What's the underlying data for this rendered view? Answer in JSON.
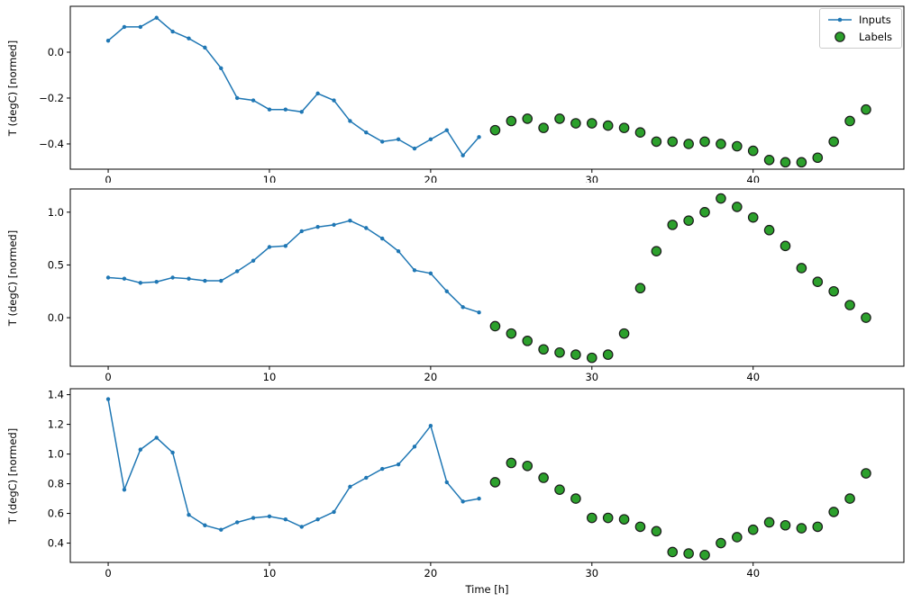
{
  "figure": {
    "background": "#ffffff",
    "accent_blue": "#1f77b4",
    "accent_green": "#2ca02c",
    "marker_edge": "#1a1a1a"
  },
  "legend": {
    "items": [
      {
        "label": "Inputs",
        "marker": "line-dot",
        "color": "#1f77b4"
      },
      {
        "label": "Labels",
        "marker": "circle",
        "color": "#2ca02c"
      }
    ]
  },
  "chart_data": [
    {
      "type": "line",
      "title": "",
      "xlabel": "",
      "ylabel": "T (degC) [normed]",
      "xlim": [
        -2.35,
        49.35
      ],
      "ylim": [
        -0.51,
        0.2
      ],
      "xticks": [
        0,
        10,
        20,
        30,
        40
      ],
      "xticklabels": [
        "0",
        "10",
        "20",
        "30",
        "40"
      ],
      "yticks": [
        0.0,
        -0.2,
        -0.4
      ],
      "yticklabels": [
        "0.0",
        "−0.2",
        "−0.4"
      ],
      "grid": false,
      "legend_position": "upper right",
      "series": [
        {
          "name": "Inputs",
          "style": "line",
          "color": "#1f77b4",
          "x": [
            0,
            1,
            2,
            3,
            4,
            5,
            6,
            7,
            8,
            9,
            10,
            11,
            12,
            13,
            14,
            15,
            16,
            17,
            18,
            19,
            20,
            21,
            22,
            23
          ],
          "y": [
            0.05,
            0.11,
            0.11,
            0.15,
            0.09,
            0.06,
            0.02,
            -0.07,
            -0.2,
            -0.21,
            -0.25,
            -0.25,
            -0.26,
            -0.18,
            -0.21,
            -0.3,
            -0.35,
            -0.39,
            -0.38,
            -0.42,
            -0.38,
            -0.34,
            -0.45,
            -0.37
          ]
        },
        {
          "name": "Labels",
          "style": "scatter",
          "color": "#2ca02c",
          "edgecolor": "#1a1a1a",
          "x": [
            24,
            25,
            26,
            27,
            28,
            29,
            30,
            31,
            32,
            33,
            34,
            35,
            36,
            37,
            38,
            39,
            40,
            41,
            42,
            43,
            44,
            45,
            46,
            47
          ],
          "y": [
            -0.34,
            -0.3,
            -0.29,
            -0.33,
            -0.29,
            -0.31,
            -0.31,
            -0.32,
            -0.33,
            -0.35,
            -0.39,
            -0.39,
            -0.4,
            -0.39,
            -0.4,
            -0.41,
            -0.43,
            -0.47,
            -0.48,
            -0.48,
            -0.46,
            -0.39,
            -0.3,
            -0.25
          ]
        }
      ]
    },
    {
      "type": "line",
      "title": "",
      "xlabel": "",
      "ylabel": "T (degC) [normed]",
      "xlim": [
        -2.35,
        49.35
      ],
      "ylim": [
        -0.46,
        1.22
      ],
      "xticks": [
        0,
        10,
        20,
        30,
        40
      ],
      "xticklabels": [
        "0",
        "10",
        "20",
        "30",
        "40"
      ],
      "yticks": [
        0.0,
        0.5,
        1.0
      ],
      "yticklabels": [
        "0.0",
        "0.5",
        "1.0"
      ],
      "grid": false,
      "legend_position": "none",
      "series": [
        {
          "name": "Inputs",
          "style": "line",
          "color": "#1f77b4",
          "x": [
            0,
            1,
            2,
            3,
            4,
            5,
            6,
            7,
            8,
            9,
            10,
            11,
            12,
            13,
            14,
            15,
            16,
            17,
            18,
            19,
            20,
            21,
            22,
            23
          ],
          "y": [
            0.38,
            0.37,
            0.33,
            0.34,
            0.38,
            0.37,
            0.35,
            0.35,
            0.44,
            0.54,
            0.67,
            0.68,
            0.82,
            0.86,
            0.88,
            0.92,
            0.85,
            0.75,
            0.63,
            0.45,
            0.42,
            0.25,
            0.1,
            0.05
          ]
        },
        {
          "name": "Labels",
          "style": "scatter",
          "color": "#2ca02c",
          "edgecolor": "#1a1a1a",
          "x": [
            24,
            25,
            26,
            27,
            28,
            29,
            30,
            31,
            32,
            33,
            34,
            35,
            36,
            37,
            38,
            39,
            40,
            41,
            42,
            43,
            44,
            45,
            46,
            47
          ],
          "y": [
            -0.08,
            -0.15,
            -0.22,
            -0.3,
            -0.33,
            -0.35,
            -0.38,
            -0.35,
            -0.15,
            0.28,
            0.63,
            0.88,
            0.92,
            1.0,
            1.13,
            1.05,
            0.95,
            0.83,
            0.68,
            0.47,
            0.34,
            0.25,
            0.12,
            0.0
          ]
        }
      ]
    },
    {
      "type": "line",
      "title": "",
      "xlabel": "Time [h]",
      "ylabel": "T (degC) [normed]",
      "xlim": [
        -2.35,
        49.35
      ],
      "ylim": [
        0.27,
        1.44
      ],
      "xticks": [
        0,
        10,
        20,
        30,
        40
      ],
      "xticklabels": [
        "0",
        "10",
        "20",
        "30",
        "40"
      ],
      "yticks": [
        0.4,
        0.6,
        0.8,
        1.0,
        1.2,
        1.4
      ],
      "yticklabels": [
        "0.4",
        "0.6",
        "0.8",
        "1.0",
        "1.2",
        "1.4"
      ],
      "grid": false,
      "legend_position": "none",
      "series": [
        {
          "name": "Inputs",
          "style": "line",
          "color": "#1f77b4",
          "x": [
            0,
            1,
            2,
            3,
            4,
            5,
            6,
            7,
            8,
            9,
            10,
            11,
            12,
            13,
            14,
            15,
            16,
            17,
            18,
            19,
            20,
            21,
            22,
            23
          ],
          "y": [
            1.37,
            0.76,
            1.03,
            1.11,
            1.01,
            0.59,
            0.52,
            0.49,
            0.54,
            0.57,
            0.58,
            0.56,
            0.51,
            0.56,
            0.61,
            0.78,
            0.84,
            0.9,
            0.93,
            1.05,
            1.19,
            0.81,
            0.68,
            0.7
          ]
        },
        {
          "name": "Labels",
          "style": "scatter",
          "color": "#2ca02c",
          "edgecolor": "#1a1a1a",
          "x": [
            24,
            25,
            26,
            27,
            28,
            29,
            30,
            31,
            32,
            33,
            34,
            35,
            36,
            37,
            38,
            39,
            40,
            41,
            42,
            43,
            44,
            45,
            46,
            47
          ],
          "y": [
            0.81,
            0.94,
            0.92,
            0.84,
            0.76,
            0.7,
            0.57,
            0.57,
            0.56,
            0.51,
            0.48,
            0.34,
            0.33,
            0.32,
            0.4,
            0.44,
            0.49,
            0.54,
            0.52,
            0.5,
            0.51,
            0.61,
            0.7,
            0.87
          ]
        }
      ]
    }
  ]
}
